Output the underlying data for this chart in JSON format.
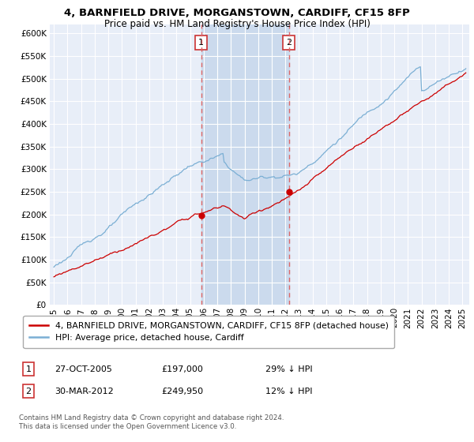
{
  "title": "4, BARNFIELD DRIVE, MORGANSTOWN, CARDIFF, CF15 8FP",
  "subtitle": "Price paid vs. HM Land Registry's House Price Index (HPI)",
  "ylim": [
    0,
    620000
  ],
  "yticks": [
    0,
    50000,
    100000,
    150000,
    200000,
    250000,
    300000,
    350000,
    400000,
    450000,
    500000,
    550000,
    600000
  ],
  "xlim_start": 1994.7,
  "xlim_end": 2025.5,
  "purchase1_date": 2005.82,
  "purchase1_price": 197000,
  "purchase2_date": 2012.25,
  "purchase2_price": 249950,
  "hpi_color": "#7bafd4",
  "price_color": "#cc0000",
  "dashed_color": "#dd6666",
  "background_color": "#ffffff",
  "plot_bg_color": "#e8eef8",
  "grid_color": "#ffffff",
  "span_color": "#c8d8ec",
  "legend_label_price": "4, BARNFIELD DRIVE, MORGANSTOWN, CARDIFF, CF15 8FP (detached house)",
  "legend_label_hpi": "HPI: Average price, detached house, Cardiff",
  "table_row1": [
    "1",
    "27-OCT-2005",
    "£197,000",
    "29% ↓ HPI"
  ],
  "table_row2": [
    "2",
    "30-MAR-2012",
    "£249,950",
    "12% ↓ HPI"
  ],
  "footnote": "Contains HM Land Registry data © Crown copyright and database right 2024.\nThis data is licensed under the Open Government Licence v3.0.",
  "title_fontsize": 9.5,
  "subtitle_fontsize": 8.5,
  "tick_fontsize": 7.5,
  "legend_fontsize": 7.8
}
